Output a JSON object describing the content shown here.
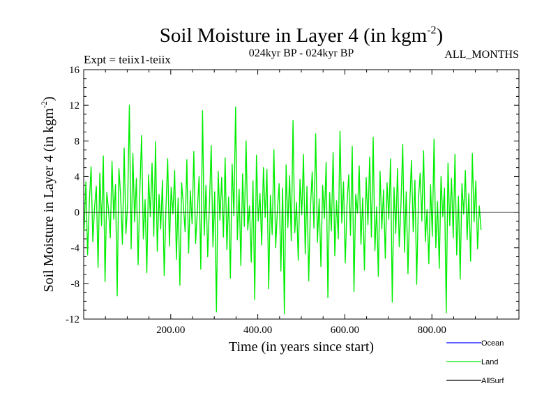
{
  "chart_data": {
    "type": "line",
    "title": "Soil Moisture in Layer 4 (in kgm",
    "title_sup": "-2",
    "title_close": ")",
    "experiment_label": "Expt = teiix1-teiix",
    "period_label": "024kyr BP - 024kyr BP",
    "months_label": "ALL_MONTHS",
    "xlabel": "Time (in years since start)",
    "ylabel": "Soil Moisture in Layer 4 (in kgm",
    "ylabel_sup": "-2",
    "ylabel_close": ")",
    "xlim": [
      0,
      1000
    ],
    "ylim": [
      -12,
      16
    ],
    "x_ticks": [
      200,
      400,
      600,
      800
    ],
    "x_tick_labels": [
      "200.00",
      "400.00",
      "600.00",
      "800.00"
    ],
    "y_ticks": [
      -12,
      -8,
      -4,
      0,
      4,
      8,
      12,
      16
    ],
    "y_tick_labels": [
      "-12",
      "-8",
      "-4",
      "0",
      "4",
      "8",
      "12",
      "16"
    ],
    "zero_line": true,
    "grid": false,
    "legend_position": "bottom-right",
    "series": [
      {
        "name": "Ocean",
        "color": "#0000ff",
        "values": []
      },
      {
        "name": "Land",
        "color": "#00ee00",
        "x_start": 1,
        "x_step": 4,
        "values": [
          -2.1,
          3.4,
          -4.8,
          1.2,
          5.1,
          -3.3,
          0.6,
          2.9,
          -6.2,
          4.4,
          -1.5,
          6.3,
          -7.8,
          2.2,
          0.3,
          -2.9,
          5.7,
          -0.8,
          3.1,
          -9.4,
          4.9,
          1.8,
          -3.6,
          7.2,
          -2.4,
          0.9,
          12.0,
          -4.1,
          6.6,
          -1.1,
          3.8,
          -5.9,
          2.5,
          8.6,
          -3.0,
          1.4,
          -6.8,
          4.2,
          -0.5,
          5.5,
          -2.7,
          7.9,
          -4.4,
          2.0,
          -1.9,
          3.6,
          -7.1,
          0.4,
          6.0,
          -3.8,
          2.8,
          -0.2,
          4.7,
          -5.3,
          1.6,
          -8.2,
          3.3,
          0.8,
          -2.2,
          5.9,
          -4.6,
          2.4,
          -1.3,
          6.8,
          -3.5,
          0.1,
          4.0,
          -6.4,
          11.4,
          -2.6,
          3.0,
          -5.0,
          1.0,
          7.5,
          -3.9,
          2.3,
          -11.2,
          4.6,
          -0.9,
          3.9,
          -2.8,
          6.1,
          -4.2,
          1.7,
          -7.4,
          5.4,
          -0.4,
          11.8,
          -3.1,
          2.6,
          -6.0,
          4.3,
          -1.6,
          8.0,
          -2.0,
          0.7,
          -5.6,
          3.5,
          -9.8,
          6.4,
          -1.0,
          2.1,
          -3.7,
          5.0,
          -0.6,
          4.8,
          -8.6,
          1.9,
          -2.5,
          7.0,
          -4.0,
          0.2,
          3.2,
          -6.6,
          2.7,
          -11.4,
          5.3,
          -1.7,
          4.1,
          -3.2,
          10.3,
          -2.3,
          1.1,
          -5.4,
          3.7,
          -0.3,
          6.5,
          -4.7,
          2.9,
          -7.7,
          0.5,
          4.5,
          -1.8,
          8.8,
          -3.4,
          1.5,
          -6.1,
          3.0,
          -0.7,
          5.6,
          -9.6,
          2.2,
          -2.1,
          6.7,
          -4.9,
          1.3,
          -3.0,
          9.1,
          -1.2,
          3.4,
          -5.7,
          0.9,
          4.2,
          -2.6,
          7.4,
          -8.9,
          2.0,
          -0.1,
          5.2,
          -3.6,
          1.6,
          -6.5,
          3.9,
          -1.4,
          6.2,
          -2.8,
          8.4,
          -4.3,
          0.6,
          -7.2,
          4.6,
          -1.9,
          2.5,
          -5.2,
          3.3,
          -0.8,
          6.0,
          -10.1,
          2.8,
          -2.4,
          4.9,
          -3.9,
          1.0,
          7.6,
          -4.5,
          2.3,
          -6.9,
          0.8,
          5.8,
          -2.2,
          3.6,
          -8.1,
          1.4,
          4.4,
          -1.0,
          6.9,
          -3.3,
          0.3,
          -5.8,
          3.1,
          -2.7,
          8.2,
          -4.0,
          1.2,
          -6.3,
          4.0,
          -0.5,
          2.7,
          -11.3,
          5.5,
          -1.5,
          3.8,
          -2.9,
          6.5,
          -4.8,
          1.8,
          -7.5,
          3.2,
          -0.2,
          4.7,
          -3.1,
          2.1,
          -5.5,
          6.6,
          -1.1,
          3.5,
          -4.1,
          0.7,
          -2.0
        ]
      },
      {
        "name": "AllSurf",
        "color": "#000000",
        "values": []
      }
    ]
  }
}
